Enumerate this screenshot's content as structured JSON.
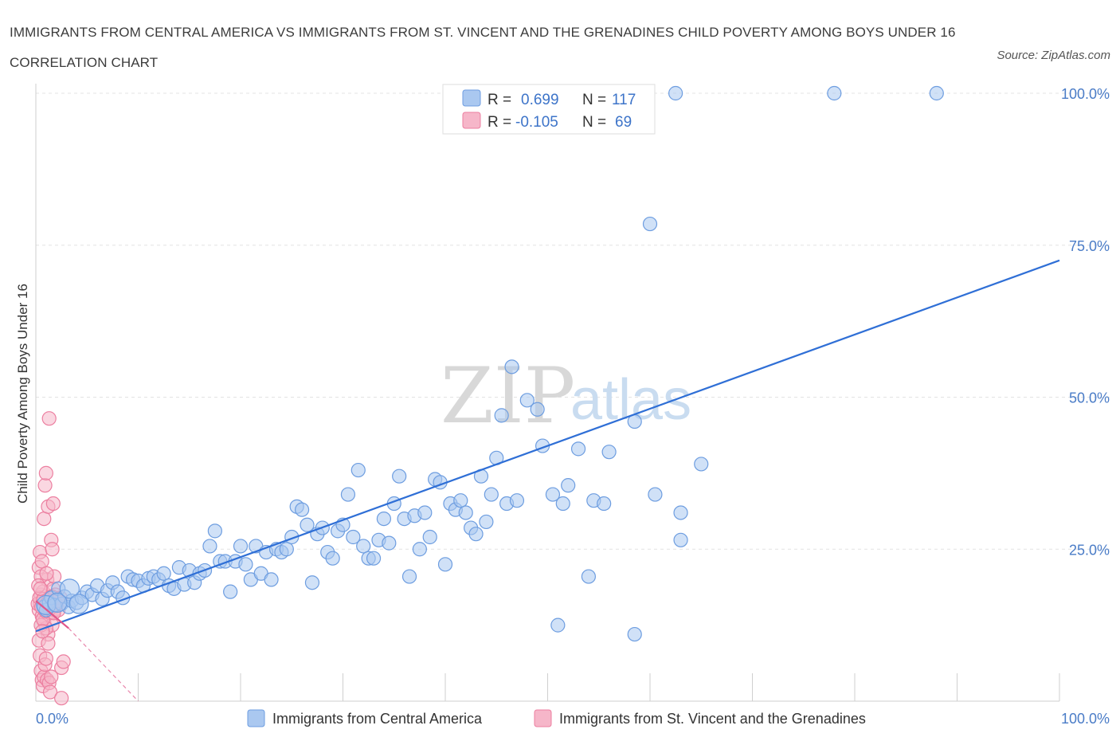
{
  "header": {
    "title": "IMMIGRANTS FROM CENTRAL AMERICA VS IMMIGRANTS FROM ST. VINCENT AND THE GRENADINES CHILD POVERTY AMONG BOYS UNDER 16 CORRELATION CHART",
    "source": "Source: ZipAtlas.com"
  },
  "watermark": {
    "zip": "ZIP",
    "atlas": "atlas"
  },
  "colors": {
    "blue_fill": "#aac8f0",
    "blue_stroke": "#6d9de0",
    "blue_line": "#2f6fd6",
    "pink_fill": "#f6b6c9",
    "pink_stroke": "#ec7fa0",
    "pink_line": "#e0558a"
  },
  "legend": {
    "series1": {
      "r_label": "R =",
      "r_value": "0.699",
      "n_label": "N =",
      "n_value": "117"
    },
    "series2": {
      "r_label": "R =",
      "r_value": "-0.105",
      "n_label": "N =",
      "n_value": "69"
    }
  },
  "chart_data": {
    "type": "scatter",
    "title": "IMMIGRANTS FROM CENTRAL AMERICA VS IMMIGRANTS FROM ST. VINCENT AND THE GRENADINES CHILD POVERTY AMONG BOYS UNDER 16 CORRELATION CHART",
    "xlabel": "",
    "ylabel": "Child Poverty Among Boys Under 16",
    "xlim": [
      0,
      100
    ],
    "ylim": [
      0,
      100
    ],
    "x_tick_labels": [
      "0.0%",
      "100.0%"
    ],
    "y_tick_labels": [
      "25.0%",
      "50.0%",
      "75.0%",
      "100.0%"
    ],
    "y_ticks": [
      25,
      50,
      75,
      100
    ],
    "grid": true,
    "legend_position": "top-center",
    "series": [
      {
        "name": "Immigrants from Central America",
        "color": "blue",
        "R": 0.699,
        "N": 117,
        "trend": {
          "x": [
            0,
            100
          ],
          "y": [
            11.5,
            72.5
          ]
        },
        "points": [
          [
            0.8,
            15.5
          ],
          [
            1.0,
            15.0
          ],
          [
            1.3,
            16.2
          ],
          [
            1.5,
            17.0
          ],
          [
            1.8,
            15.8
          ],
          [
            2.2,
            18.5
          ],
          [
            2.5,
            16.0
          ],
          [
            2.8,
            17.2
          ],
          [
            3.2,
            15.5
          ],
          [
            3.5,
            16.5
          ],
          [
            4.0,
            16.2
          ],
          [
            4.5,
            17.0
          ],
          [
            5.0,
            18.0
          ],
          [
            5.5,
            17.5
          ],
          [
            6.0,
            19.0
          ],
          [
            6.5,
            16.8
          ],
          [
            7.0,
            18.2
          ],
          [
            7.5,
            19.5
          ],
          [
            8.0,
            18.0
          ],
          [
            8.5,
            17.0
          ],
          [
            9.0,
            20.5
          ],
          [
            9.5,
            20.0
          ],
          [
            10.0,
            19.8
          ],
          [
            10.5,
            19.0
          ],
          [
            11.0,
            20.2
          ],
          [
            11.5,
            20.5
          ],
          [
            12.0,
            20.0
          ],
          [
            12.5,
            21.0
          ],
          [
            13.0,
            19.0
          ],
          [
            13.5,
            18.5
          ],
          [
            14.0,
            22.0
          ],
          [
            14.5,
            19.2
          ],
          [
            15.0,
            21.5
          ],
          [
            15.5,
            19.5
          ],
          [
            16.0,
            21.0
          ],
          [
            16.5,
            21.5
          ],
          [
            17.0,
            25.5
          ],
          [
            17.5,
            28.0
          ],
          [
            18.0,
            23.0
          ],
          [
            18.5,
            23.0
          ],
          [
            19.0,
            18.0
          ],
          [
            19.5,
            23.0
          ],
          [
            20.0,
            25.5
          ],
          [
            20.5,
            22.5
          ],
          [
            21.0,
            20.0
          ],
          [
            21.5,
            25.5
          ],
          [
            22.0,
            21.0
          ],
          [
            22.5,
            24.5
          ],
          [
            23.0,
            20.0
          ],
          [
            23.5,
            25.0
          ],
          [
            24.0,
            24.5
          ],
          [
            24.5,
            25.0
          ],
          [
            25.0,
            27.0
          ],
          [
            25.5,
            32.0
          ],
          [
            26.0,
            31.5
          ],
          [
            26.5,
            29.0
          ],
          [
            27.0,
            19.5
          ],
          [
            27.5,
            27.5
          ],
          [
            28.0,
            28.5
          ],
          [
            28.5,
            24.5
          ],
          [
            29.0,
            23.5
          ],
          [
            29.5,
            28.0
          ],
          [
            30.0,
            29.0
          ],
          [
            30.5,
            34.0
          ],
          [
            31.0,
            27.0
          ],
          [
            31.5,
            38.0
          ],
          [
            32.0,
            25.5
          ],
          [
            32.5,
            23.5
          ],
          [
            33.0,
            23.5
          ],
          [
            33.5,
            26.5
          ],
          [
            34.0,
            30.0
          ],
          [
            34.5,
            26.0
          ],
          [
            35.0,
            32.5
          ],
          [
            35.5,
            37.0
          ],
          [
            36.0,
            30.0
          ],
          [
            36.5,
            20.5
          ],
          [
            37.0,
            30.5
          ],
          [
            37.5,
            25.0
          ],
          [
            38.0,
            31.0
          ],
          [
            38.5,
            27.0
          ],
          [
            39.0,
            36.5
          ],
          [
            39.5,
            36.0
          ],
          [
            40.0,
            22.5
          ],
          [
            40.5,
            32.5
          ],
          [
            41.0,
            31.5
          ],
          [
            41.5,
            33.0
          ],
          [
            42.0,
            31.0
          ],
          [
            42.5,
            28.5
          ],
          [
            43.0,
            27.5
          ],
          [
            43.5,
            37.0
          ],
          [
            44.0,
            29.5
          ],
          [
            44.5,
            34.0
          ],
          [
            45.0,
            40.0
          ],
          [
            45.5,
            47.0
          ],
          [
            46.0,
            32.5
          ],
          [
            46.5,
            55.0
          ],
          [
            47.0,
            33.0
          ],
          [
            48.0,
            49.5
          ],
          [
            49.0,
            48.0
          ],
          [
            49.5,
            42.0
          ],
          [
            50.5,
            34.0
          ],
          [
            51.0,
            12.5
          ],
          [
            51.5,
            32.5
          ],
          [
            52.0,
            35.5
          ],
          [
            53.0,
            41.5
          ],
          [
            54.0,
            20.5
          ],
          [
            54.5,
            33.0
          ],
          [
            55.5,
            32.5
          ],
          [
            56.0,
            41.0
          ],
          [
            58.5,
            11.0
          ],
          [
            58.5,
            46.0
          ],
          [
            60.0,
            78.5
          ],
          [
            60.5,
            34.0
          ],
          [
            63.0,
            31.0
          ],
          [
            63.0,
            26.5
          ],
          [
            65.0,
            39.0
          ],
          [
            62.5,
            100.0
          ],
          [
            78.0,
            100.0
          ],
          [
            88.0,
            100.0
          ]
        ]
      },
      {
        "name": "Immigrants from St. Vincent and the Grenadines",
        "color": "pink",
        "R": -0.105,
        "N": 69,
        "trend": {
          "x": [
            0,
            3.2
          ],
          "y": [
            16.5,
            12.0
          ]
        },
        "trend_extension": {
          "x": [
            3.2,
            10.0
          ],
          "y": [
            12.0,
            0.0
          ]
        },
        "points": [
          [
            0.3,
            15.0
          ],
          [
            0.4,
            16.0
          ],
          [
            0.5,
            17.5
          ],
          [
            0.6,
            14.0
          ],
          [
            0.7,
            18.0
          ],
          [
            0.8,
            13.0
          ],
          [
            0.9,
            16.5
          ],
          [
            1.0,
            15.5
          ],
          [
            1.1,
            20.0
          ],
          [
            1.2,
            11.0
          ],
          [
            1.3,
            17.0
          ],
          [
            1.4,
            14.5
          ],
          [
            1.5,
            16.0
          ],
          [
            1.6,
            12.5
          ],
          [
            1.7,
            18.5
          ],
          [
            1.8,
            15.0
          ],
          [
            1.9,
            17.5
          ],
          [
            2.0,
            16.0
          ],
          [
            0.3,
            22.0
          ],
          [
            0.4,
            24.5
          ],
          [
            0.5,
            20.5
          ],
          [
            0.6,
            23.0
          ],
          [
            0.8,
            30.0
          ],
          [
            0.9,
            35.5
          ],
          [
            1.0,
            37.5
          ],
          [
            1.2,
            32.0
          ],
          [
            1.3,
            46.5
          ],
          [
            1.5,
            26.5
          ],
          [
            1.6,
            25.0
          ],
          [
            1.7,
            32.5
          ],
          [
            1.8,
            20.5
          ],
          [
            0.3,
            10.0
          ],
          [
            0.4,
            7.5
          ],
          [
            0.5,
            5.0
          ],
          [
            0.6,
            3.5
          ],
          [
            0.7,
            2.5
          ],
          [
            0.8,
            4.0
          ],
          [
            0.9,
            6.0
          ],
          [
            1.0,
            7.0
          ],
          [
            1.1,
            3.5
          ],
          [
            1.2,
            9.5
          ],
          [
            1.3,
            3.0
          ],
          [
            1.4,
            1.5
          ],
          [
            1.5,
            4.0
          ],
          [
            2.5,
            5.5
          ],
          [
            2.7,
            6.5
          ],
          [
            2.5,
            0.5
          ],
          [
            1.0,
            12.0
          ],
          [
            0.5,
            12.5
          ],
          [
            0.7,
            13.5
          ],
          [
            1.4,
            15.5
          ],
          [
            1.6,
            16.5
          ],
          [
            2.2,
            15.0
          ],
          [
            2.4,
            17.0
          ],
          [
            0.2,
            16.0
          ],
          [
            0.35,
            17.0
          ],
          [
            0.55,
            15.5
          ],
          [
            0.75,
            16.8
          ],
          [
            0.95,
            14.8
          ],
          [
            1.15,
            16.2
          ],
          [
            1.35,
            15.2
          ],
          [
            1.55,
            17.2
          ],
          [
            1.75,
            14.5
          ],
          [
            1.95,
            15.8
          ],
          [
            2.1,
            16.5
          ],
          [
            0.25,
            19.0
          ],
          [
            0.45,
            18.5
          ],
          [
            0.65,
            11.5
          ],
          [
            1.05,
            21.0
          ]
        ]
      }
    ]
  },
  "bottom_legend": {
    "series1": "Immigrants from Central America",
    "series2": "Immigrants from St. Vincent and the Grenadines"
  }
}
